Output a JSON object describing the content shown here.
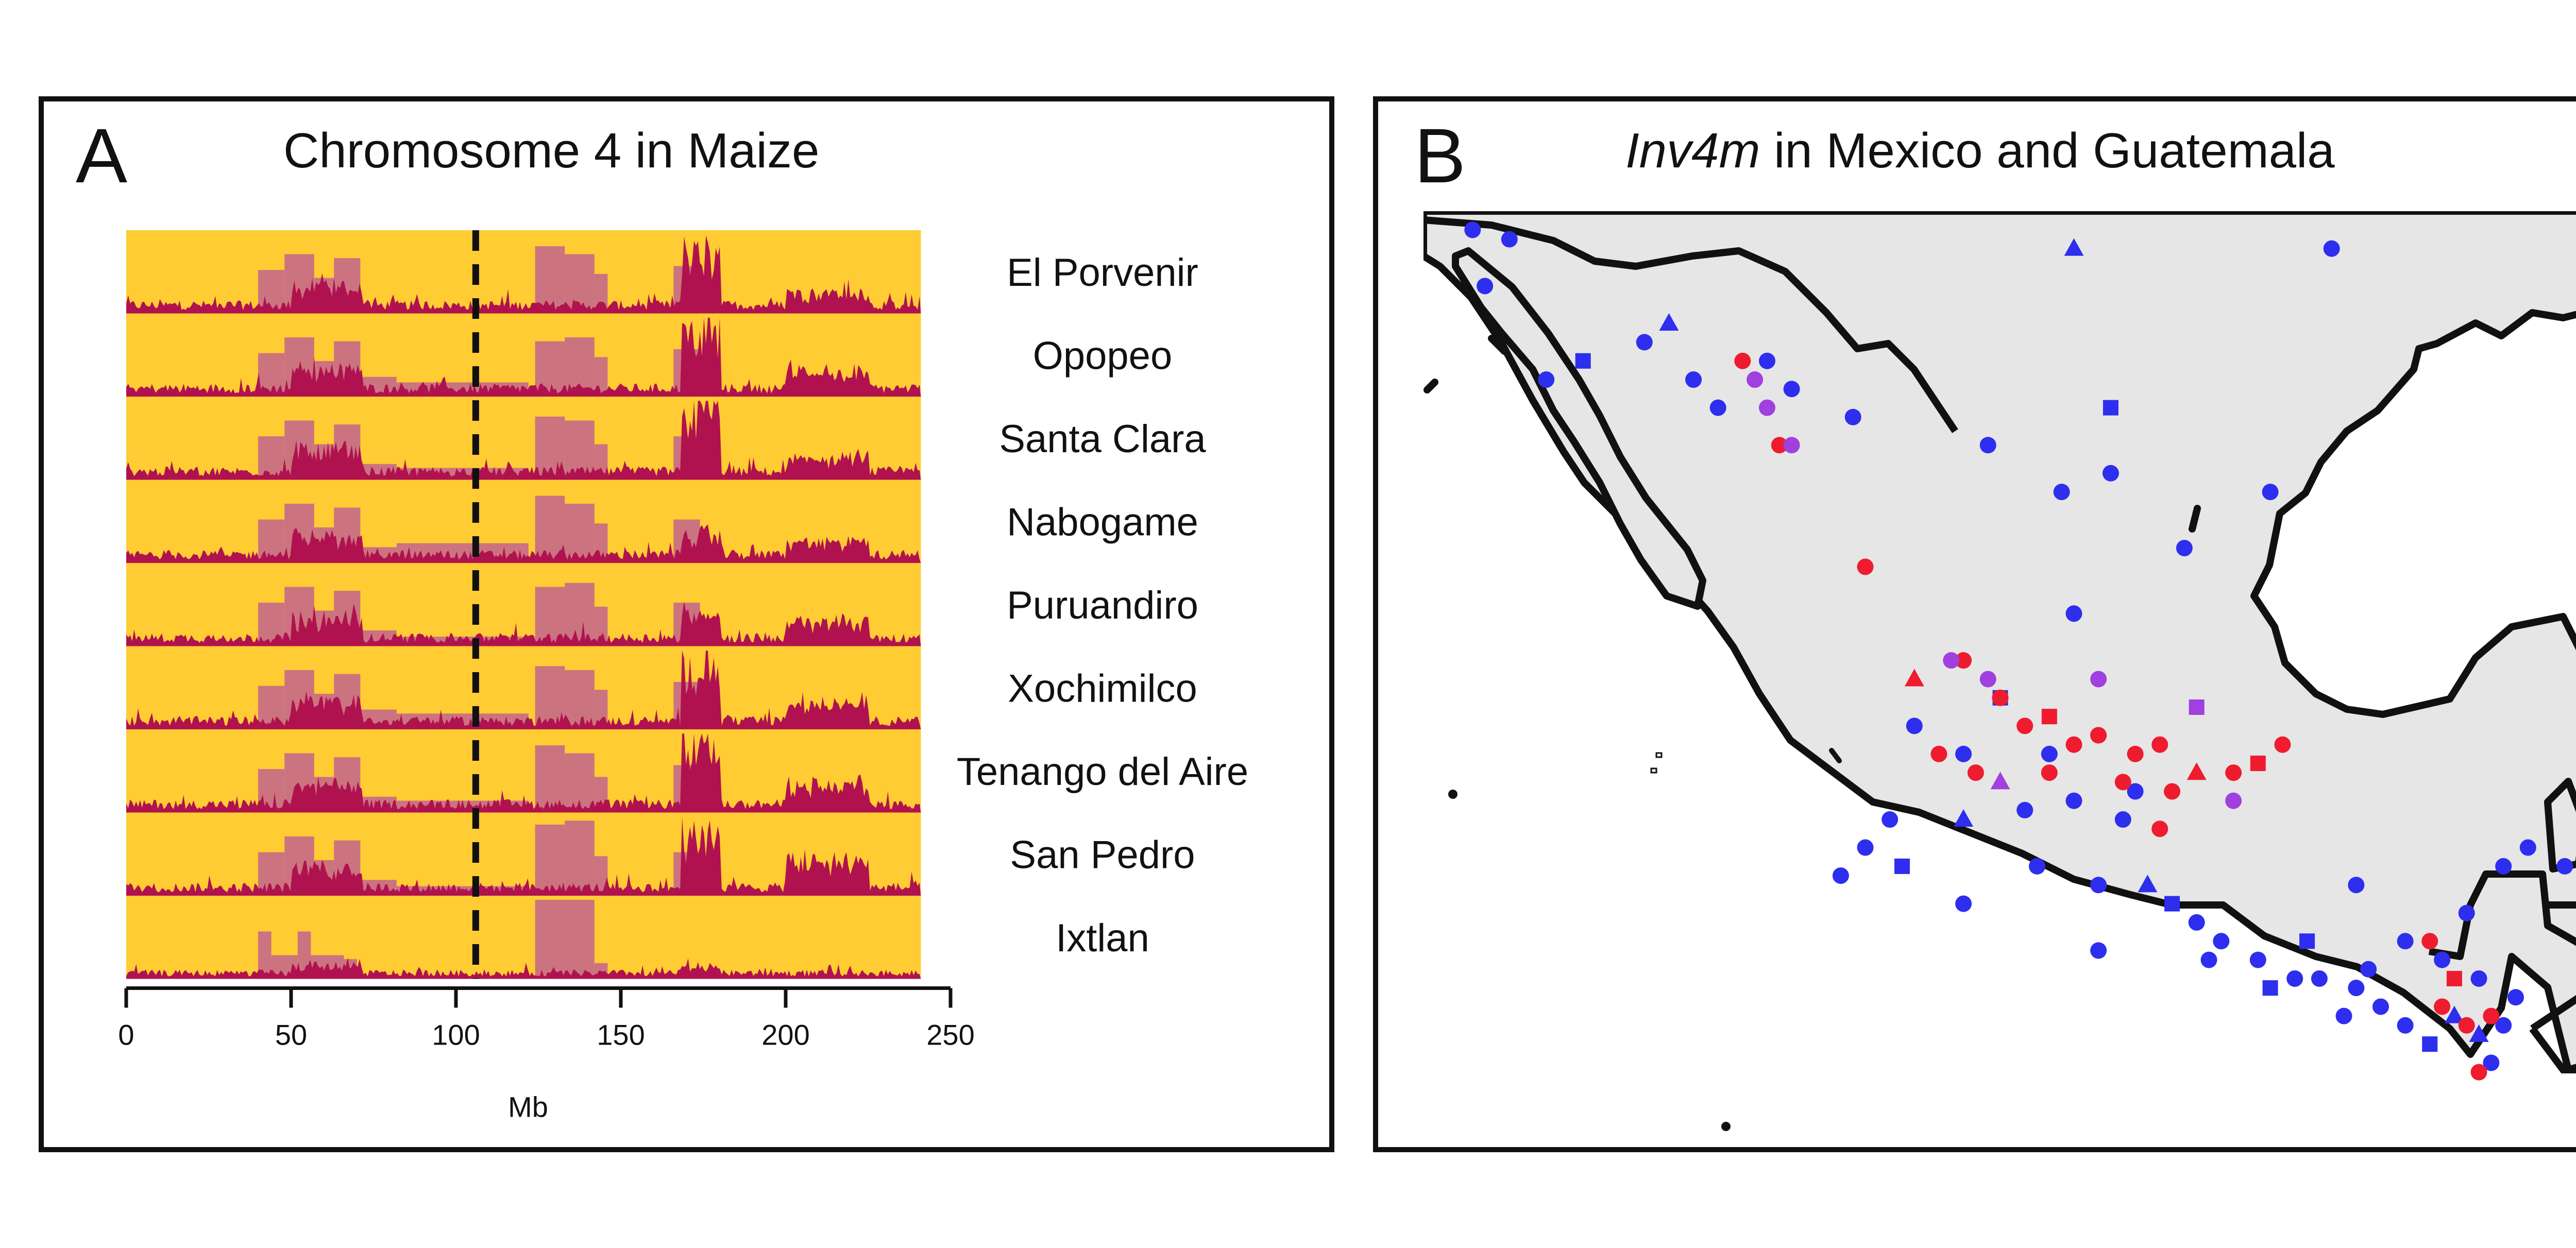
{
  "panel_a": {
    "letter": "A",
    "title": "Chromosome 4 in Maize"
  },
  "panel_b": {
    "letter": "B",
    "title_italic": "Inv4m",
    "title_rest": " in Mexico and Guatemala"
  },
  "colors": {
    "background_band": "#FFCC33",
    "introgression_dark": "#B0124F",
    "introgression_light": "#CC7380",
    "land": "#E6E6E6",
    "border": "#111111",
    "point_blue": "#2E2EEE",
    "point_red": "#EE1C2E",
    "point_purple": "#A040E0"
  },
  "chart_data": [
    {
      "type": "area",
      "title": "Chromosome 4 in Maize",
      "xlabel": "Mb",
      "ylabel": "",
      "xlim": [
        0,
        250
      ],
      "xticks": [
        0,
        50,
        100,
        150,
        200,
        250
      ],
      "chromosome_length_mb": 241,
      "dashed_line_mb": 106,
      "series": [
        {
          "name": "El Porvenir"
        },
        {
          "name": "Opopeo"
        },
        {
          "name": "Santa Clara"
        },
        {
          "name": "Nabogame"
        },
        {
          "name": "Puruandiro"
        },
        {
          "name": "Xochimilco"
        },
        {
          "name": "Tenango del Aire"
        },
        {
          "name": "San Pedro"
        },
        {
          "name": "Ixtlan"
        }
      ],
      "light_blocks_mb": [
        [
          [
            40,
            48,
            0.55
          ],
          [
            48,
            57,
            0.75
          ],
          [
            57,
            63,
            0.45
          ],
          [
            63,
            71,
            0.7
          ],
          [
            124,
            133,
            0.85
          ],
          [
            133,
            142,
            0.75
          ],
          [
            142,
            146,
            0.5
          ],
          [
            166,
            174,
            0.6
          ]
        ],
        [
          [
            40,
            48,
            0.55
          ],
          [
            48,
            57,
            0.75
          ],
          [
            57,
            63,
            0.45
          ],
          [
            63,
            71,
            0.7
          ],
          [
            71,
            82,
            0.25
          ],
          [
            82,
            122,
            0.18
          ],
          [
            124,
            133,
            0.7
          ],
          [
            133,
            142,
            0.75
          ],
          [
            142,
            146,
            0.5
          ],
          [
            166,
            174,
            0.6
          ]
        ],
        [
          [
            40,
            48,
            0.55
          ],
          [
            48,
            57,
            0.75
          ],
          [
            57,
            63,
            0.45
          ],
          [
            63,
            71,
            0.7
          ],
          [
            71,
            82,
            0.2
          ],
          [
            82,
            122,
            0.15
          ],
          [
            124,
            133,
            0.8
          ],
          [
            133,
            142,
            0.75
          ],
          [
            142,
            146,
            0.45
          ],
          [
            166,
            174,
            0.55
          ]
        ],
        [
          [
            40,
            48,
            0.55
          ],
          [
            48,
            57,
            0.75
          ],
          [
            57,
            63,
            0.45
          ],
          [
            63,
            71,
            0.7
          ],
          [
            71,
            82,
            0.2
          ],
          [
            82,
            122,
            0.25
          ],
          [
            124,
            133,
            0.85
          ],
          [
            133,
            142,
            0.75
          ],
          [
            142,
            146,
            0.5
          ],
          [
            166,
            174,
            0.55
          ]
        ],
        [
          [
            40,
            48,
            0.55
          ],
          [
            48,
            57,
            0.75
          ],
          [
            57,
            63,
            0.45
          ],
          [
            63,
            71,
            0.7
          ],
          [
            71,
            82,
            0.2
          ],
          [
            82,
            122,
            0.12
          ],
          [
            124,
            133,
            0.75
          ],
          [
            133,
            142,
            0.8
          ],
          [
            142,
            146,
            0.5
          ],
          [
            166,
            174,
            0.55
          ]
        ],
        [
          [
            40,
            48,
            0.55
          ],
          [
            48,
            57,
            0.75
          ],
          [
            57,
            63,
            0.45
          ],
          [
            63,
            71,
            0.7
          ],
          [
            71,
            82,
            0.25
          ],
          [
            82,
            122,
            0.2
          ],
          [
            124,
            133,
            0.8
          ],
          [
            133,
            142,
            0.75
          ],
          [
            142,
            146,
            0.5
          ],
          [
            166,
            174,
            0.6
          ]
        ],
        [
          [
            40,
            48,
            0.55
          ],
          [
            48,
            57,
            0.75
          ],
          [
            57,
            63,
            0.45
          ],
          [
            63,
            71,
            0.7
          ],
          [
            71,
            82,
            0.2
          ],
          [
            82,
            122,
            0.15
          ],
          [
            124,
            133,
            0.85
          ],
          [
            133,
            142,
            0.75
          ],
          [
            142,
            146,
            0.45
          ],
          [
            166,
            174,
            0.6
          ]
        ],
        [
          [
            40,
            48,
            0.55
          ],
          [
            48,
            57,
            0.75
          ],
          [
            57,
            63,
            0.45
          ],
          [
            63,
            71,
            0.7
          ],
          [
            71,
            82,
            0.2
          ],
          [
            82,
            122,
            0.12
          ],
          [
            124,
            133,
            0.9
          ],
          [
            133,
            142,
            0.95
          ],
          [
            142,
            146,
            0.5
          ],
          [
            166,
            174,
            0.55
          ]
        ],
        [
          [
            40,
            44,
            0.6
          ],
          [
            44,
            52,
            0.3
          ],
          [
            52,
            56,
            0.6
          ],
          [
            56,
            66,
            0.3
          ],
          [
            66,
            70,
            0.25
          ],
          [
            124,
            142,
            1.0
          ],
          [
            142,
            146,
            0.2
          ]
        ]
      ],
      "peaks_mb": [
        [
          [
            168,
            180,
            0.85
          ],
          [
            50,
            72,
            0.3
          ],
          [
            200,
            225,
            0.2
          ]
        ],
        [
          [
            168,
            180,
            0.95
          ],
          [
            50,
            72,
            0.3
          ],
          [
            200,
            225,
            0.25
          ]
        ],
        [
          [
            168,
            180,
            1.0
          ],
          [
            50,
            72,
            0.35
          ],
          [
            200,
            225,
            0.2
          ]
        ],
        [
          [
            168,
            180,
            0.35
          ],
          [
            50,
            72,
            0.3
          ],
          [
            200,
            225,
            0.2
          ]
        ],
        [
          [
            168,
            180,
            0.4
          ],
          [
            50,
            72,
            0.3
          ],
          [
            200,
            225,
            0.25
          ]
        ],
        [
          [
            168,
            180,
            0.95
          ],
          [
            50,
            72,
            0.3
          ],
          [
            200,
            225,
            0.3
          ]
        ],
        [
          [
            168,
            180,
            0.95
          ],
          [
            50,
            72,
            0.3
          ],
          [
            200,
            225,
            0.3
          ]
        ],
        [
          [
            168,
            180,
            0.95
          ],
          [
            50,
            72,
            0.3
          ],
          [
            200,
            225,
            0.45
          ]
        ],
        [
          [
            168,
            180,
            0.15
          ],
          [
            50,
            72,
            0.15
          ]
        ]
      ]
    },
    {
      "type": "scatter",
      "title": "Inv4m in Mexico and Guatemala",
      "xlabel": "",
      "ylabel": "",
      "markers": [
        "circle",
        "square",
        "triangle"
      ],
      "series": [
        {
          "color": "#2E2EEE",
          "values": [
            [
              0.04,
              0.02
            ],
            [
              0.07,
              0.03
            ],
            [
              0.05,
              0.08
            ],
            [
              0.1,
              0.18
            ],
            [
              0.13,
              0.16
            ],
            [
              0.18,
              0.14
            ],
            [
              0.2,
              0.12
            ],
            [
              0.22,
              0.18
            ],
            [
              0.24,
              0.21
            ],
            [
              0.28,
              0.16
            ],
            [
              0.3,
              0.19
            ],
            [
              0.35,
              0.22
            ],
            [
              0.46,
              0.25
            ],
            [
              0.56,
              0.21
            ],
            [
              0.52,
              0.3
            ],
            [
              0.56,
              0.28
            ],
            [
              0.74,
              0.04
            ],
            [
              0.53,
              0.04
            ],
            [
              0.69,
              0.3
            ],
            [
              0.62,
              0.36
            ],
            [
              0.53,
              0.43
            ],
            [
              0.4,
              0.55
            ],
            [
              0.47,
              0.52
            ],
            [
              0.51,
              0.58
            ],
            [
              0.44,
              0.58
            ],
            [
              0.53,
              0.63
            ],
            [
              0.49,
              0.64
            ],
            [
              0.38,
              0.65
            ],
            [
              0.44,
              0.65
            ],
            [
              0.36,
              0.68
            ],
            [
              0.34,
              0.71
            ],
            [
              0.39,
              0.7
            ],
            [
              0.44,
              0.74
            ],
            [
              0.55,
              0.56
            ],
            [
              0.5,
              0.7
            ],
            [
              0.58,
              0.62
            ],
            [
              0.57,
              0.65
            ],
            [
              0.55,
              0.72
            ],
            [
              0.55,
              0.79
            ],
            [
              0.59,
              0.72
            ],
            [
              0.61,
              0.74
            ],
            [
              0.63,
              0.76
            ],
            [
              0.65,
              0.78
            ],
            [
              0.68,
              0.8
            ],
            [
              0.71,
              0.82
            ],
            [
              0.73,
              0.82
            ],
            [
              0.76,
              0.83
            ],
            [
              0.78,
              0.85
            ],
            [
              0.8,
              0.87
            ],
            [
              0.82,
              0.89
            ],
            [
              0.84,
              0.86
            ],
            [
              0.86,
              0.82
            ],
            [
              0.85,
              0.75
            ],
            [
              0.88,
              0.7
            ],
            [
              0.9,
              0.68
            ],
            [
              0.93,
              0.7
            ],
            [
              0.95,
              0.75
            ],
            [
              0.76,
              0.72
            ],
            [
              0.72,
              0.78
            ],
            [
              0.8,
              0.78
            ],
            [
              0.83,
              0.8
            ],
            [
              0.86,
              0.88
            ],
            [
              0.88,
              0.87
            ],
            [
              0.87,
              0.91
            ],
            [
              0.89,
              0.84
            ],
            [
              0.75,
              0.86
            ],
            [
              0.77,
              0.81
            ],
            [
              0.69,
              0.83
            ],
            [
              0.64,
              0.8
            ]
          ]
        },
        {
          "color": "#EE1C2E",
          "values": [
            [
              0.26,
              0.16
            ],
            [
              0.29,
              0.25
            ],
            [
              0.36,
              0.38
            ],
            [
              0.4,
              0.5
            ],
            [
              0.44,
              0.48
            ],
            [
              0.47,
              0.52
            ],
            [
              0.49,
              0.55
            ],
            [
              0.51,
              0.54
            ],
            [
              0.53,
              0.57
            ],
            [
              0.55,
              0.56
            ],
            [
              0.58,
              0.58
            ],
            [
              0.6,
              0.57
            ],
            [
              0.57,
              0.61
            ],
            [
              0.61,
              0.62
            ],
            [
              0.63,
              0.6
            ],
            [
              0.66,
              0.6
            ],
            [
              0.68,
              0.59
            ],
            [
              0.7,
              0.57
            ],
            [
              0.45,
              0.6
            ],
            [
              0.51,
              0.6
            ],
            [
              0.42,
              0.58
            ],
            [
              0.6,
              0.66
            ],
            [
              0.83,
              0.85
            ],
            [
              0.85,
              0.87
            ],
            [
              0.87,
              0.86
            ],
            [
              0.84,
              0.82
            ],
            [
              0.82,
              0.78
            ],
            [
              0.86,
              0.92
            ]
          ]
        },
        {
          "color": "#A040E0",
          "values": [
            [
              0.27,
              0.18
            ],
            [
              0.28,
              0.21
            ],
            [
              0.3,
              0.25
            ],
            [
              0.43,
              0.48
            ],
            [
              0.46,
              0.5
            ],
            [
              0.55,
              0.5
            ],
            [
              0.63,
              0.53
            ],
            [
              0.66,
              0.63
            ],
            [
              0.47,
              0.61
            ]
          ]
        }
      ]
    }
  ]
}
